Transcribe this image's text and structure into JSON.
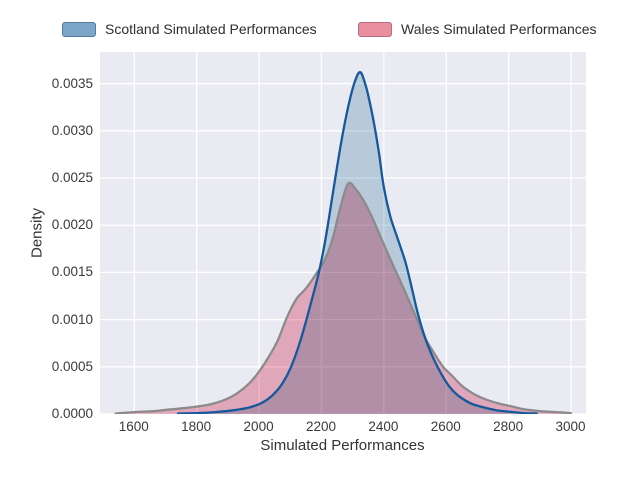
{
  "figure": {
    "background": "#ffffff"
  },
  "legend": {
    "position": "top",
    "entries": [
      {
        "label": "Scotland Simulated Performances",
        "swatch_fill": "#7ca6c8",
        "swatch_border": "#55799c"
      },
      {
        "label": "Wales Simulated Performances",
        "swatch_fill": "#e88fa0",
        "swatch_border": "#b96a7d"
      }
    ]
  },
  "chart_data": {
    "type": "area",
    "subtype": "kde-density",
    "title": "",
    "xlabel": "Simulated Performances",
    "ylabel": "Density",
    "xlim": [
      1490,
      3048
    ],
    "ylim": [
      0,
      0.003835
    ],
    "grid": true,
    "plot_bg": "#eaeaf2",
    "grid_color": "#ffffff",
    "x_tick_values": [
      1600,
      1800,
      2000,
      2200,
      2400,
      2600,
      2800,
      3000
    ],
    "x_tick_labels": [
      "1600",
      "1800",
      "2000",
      "2200",
      "2400",
      "2600",
      "2800",
      "3000"
    ],
    "y_tick_values": [
      0.0,
      0.0005,
      0.001,
      0.0015,
      0.002,
      0.0025,
      0.003,
      0.0035
    ],
    "y_tick_labels": [
      "0.0000",
      "0.0005",
      "0.0010",
      "0.0015",
      "0.0020",
      "0.0025",
      "0.0030",
      "0.0035"
    ],
    "series": [
      {
        "name": "Scotland Simulated Performances",
        "line_color": "#15599c",
        "fill_color": "#c9dbe6",
        "peak": {
          "x": 2325,
          "density": 0.00362
        },
        "points": [
          [
            1740,
            5e-06
          ],
          [
            1800,
            1e-05
          ],
          [
            1860,
            2e-05
          ],
          [
            1920,
            4e-05
          ],
          [
            1970,
            7e-05
          ],
          [
            2010,
            0.00012
          ],
          [
            2040,
            0.00019
          ],
          [
            2070,
            0.0003
          ],
          [
            2100,
            0.00048
          ],
          [
            2130,
            0.00075
          ],
          [
            2160,
            0.0011
          ],
          [
            2190,
            0.00148
          ],
          [
            2210,
            0.0018
          ],
          [
            2230,
            0.0022
          ],
          [
            2250,
            0.00262
          ],
          [
            2270,
            0.003
          ],
          [
            2290,
            0.00332
          ],
          [
            2310,
            0.00355
          ],
          [
            2325,
            0.00362
          ],
          [
            2340,
            0.0035
          ],
          [
            2355,
            0.0033
          ],
          [
            2370,
            0.00305
          ],
          [
            2385,
            0.00275
          ],
          [
            2400,
            0.0024
          ],
          [
            2420,
            0.0021
          ],
          [
            2445,
            0.00185
          ],
          [
            2470,
            0.0016
          ],
          [
            2490,
            0.00133
          ],
          [
            2510,
            0.00105
          ],
          [
            2535,
            0.00078
          ],
          [
            2560,
            0.00058
          ],
          [
            2585,
            0.00042
          ],
          [
            2610,
            0.00029
          ],
          [
            2640,
            0.00019
          ],
          [
            2680,
            0.00011
          ],
          [
            2720,
            7e-05
          ],
          [
            2760,
            4e-05
          ],
          [
            2800,
            2.5e-05
          ],
          [
            2850,
            1e-05
          ],
          [
            2890,
            5e-06
          ]
        ]
      },
      {
        "name": "Wales Simulated Performances",
        "line_color": "#8b8b8b",
        "fill_color": "#f5b6c4",
        "peak": {
          "x": 2285,
          "density": 0.00244
        },
        "points": [
          [
            1540,
            5e-06
          ],
          [
            1600,
            2e-05
          ],
          [
            1660,
            3e-05
          ],
          [
            1720,
            5e-05
          ],
          [
            1780,
            7e-05
          ],
          [
            1840,
            0.0001
          ],
          [
            1890,
            0.00015
          ],
          [
            1930,
            0.00022
          ],
          [
            1970,
            0.00033
          ],
          [
            2000,
            0.00045
          ],
          [
            2030,
            0.0006
          ],
          [
            2060,
            0.00078
          ],
          [
            2090,
            0.00103
          ],
          [
            2120,
            0.00122
          ],
          [
            2150,
            0.00133
          ],
          [
            2180,
            0.00147
          ],
          [
            2210,
            0.00163
          ],
          [
            2235,
            0.00185
          ],
          [
            2260,
            0.00218
          ],
          [
            2285,
            0.00244
          ],
          [
            2310,
            0.00238
          ],
          [
            2335,
            0.00226
          ],
          [
            2360,
            0.0021
          ],
          [
            2385,
            0.00191
          ],
          [
            2410,
            0.00172
          ],
          [
            2440,
            0.0015
          ],
          [
            2470,
            0.00128
          ],
          [
            2500,
            0.00105
          ],
          [
            2530,
            0.00082
          ],
          [
            2560,
            0.00065
          ],
          [
            2590,
            0.0005
          ],
          [
            2620,
            0.0004
          ],
          [
            2650,
            0.0003
          ],
          [
            2690,
            0.00021
          ],
          [
            2730,
            0.00015
          ],
          [
            2770,
            0.00011
          ],
          [
            2810,
            8e-05
          ],
          [
            2850,
            5e-05
          ],
          [
            2900,
            3e-05
          ],
          [
            2950,
            2e-05
          ],
          [
            3000,
            1e-05
          ]
        ]
      }
    ]
  }
}
